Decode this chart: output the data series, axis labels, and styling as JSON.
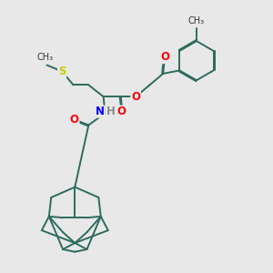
{
  "background_color": "#e8e8e8",
  "bond_color": "#2d6b5e",
  "atom_colors": {
    "O": "#ff0000",
    "N": "#0000ff",
    "S": "#cccc00",
    "H": "#888888"
  },
  "line_width": 1.4,
  "font_size": 8.5,
  "figsize": [
    3.0,
    3.0
  ],
  "dpi": 100
}
